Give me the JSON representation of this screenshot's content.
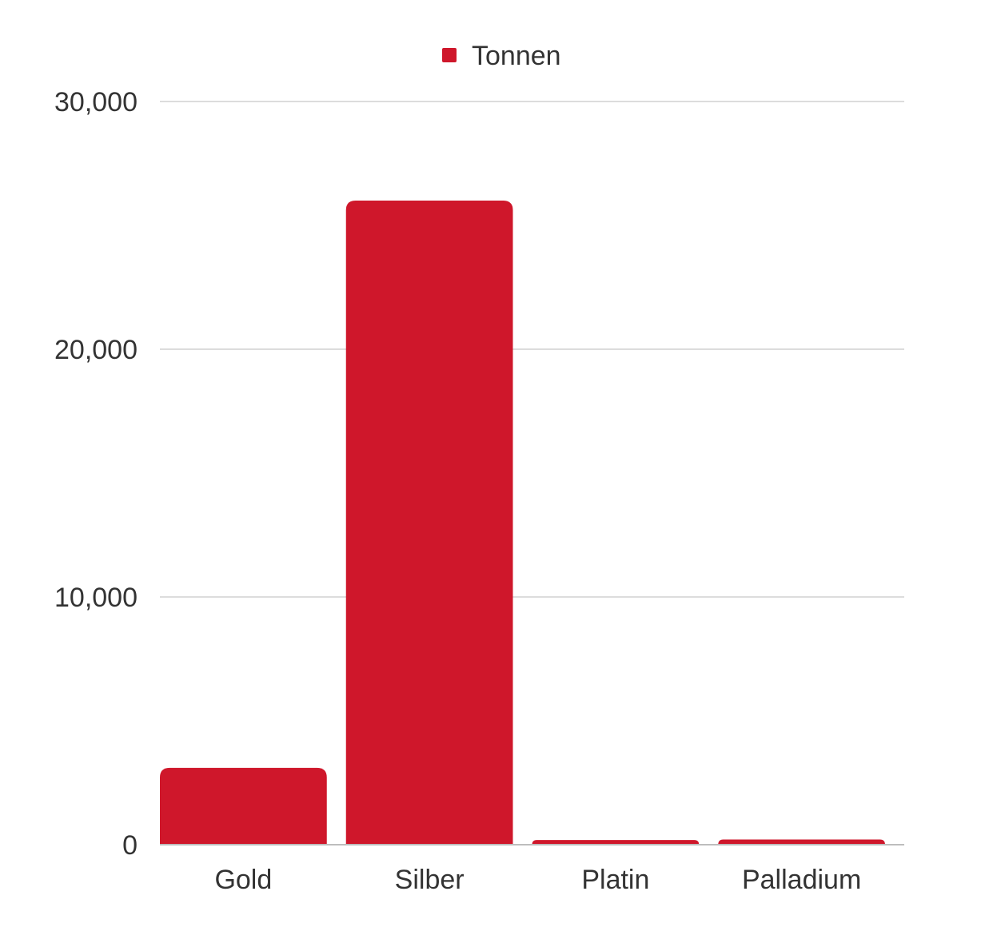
{
  "chart_data": {
    "type": "bar",
    "categories": [
      "Gold",
      "Silber",
      "Platin",
      "Palladium"
    ],
    "series": [
      {
        "name": "Tonnen",
        "values": [
          3100,
          26000,
          190,
          210
        ],
        "color": "#cf172b"
      }
    ],
    "title": "",
    "xlabel": "",
    "ylabel": "",
    "ylim": [
      0,
      30000
    ],
    "yticks": [
      {
        "value": 0,
        "label": "0"
      },
      {
        "value": 10000,
        "label": "10,000"
      },
      {
        "value": 20000,
        "label": "20,000"
      },
      {
        "value": 30000,
        "label": "30,000"
      }
    ],
    "grid": true,
    "gridColor": "#d0d0d0",
    "legend": {
      "position": "top-center"
    }
  }
}
